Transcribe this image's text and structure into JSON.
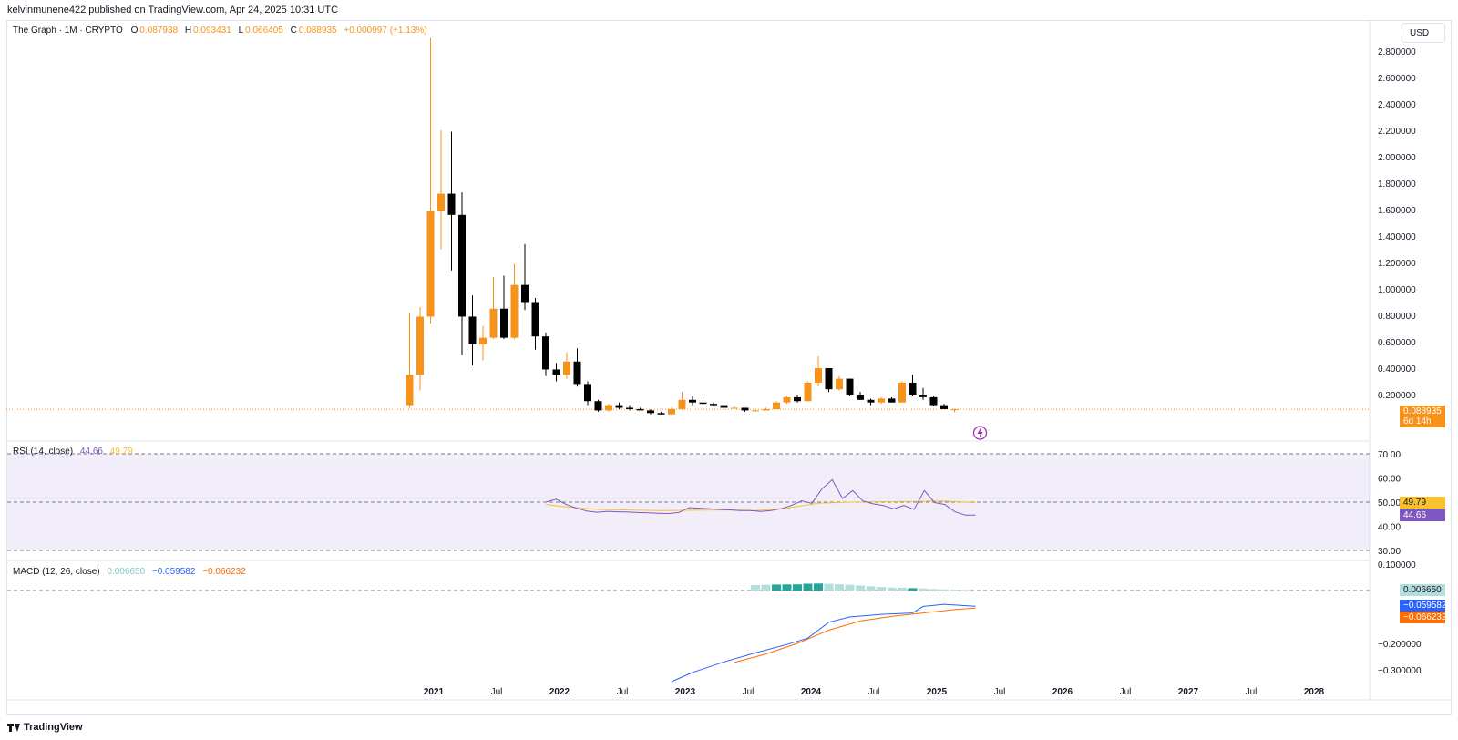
{
  "header": {
    "published": "kelvinmunene422 published on TradingView.com, Apr 24, 2025 10:31 UTC"
  },
  "legend": {
    "symbol": "The Graph · 1M · CRYPTO",
    "o_label": "O",
    "o": "0.087938",
    "h_label": "H",
    "h": "0.093431",
    "l_label": "L",
    "l": "0.066405",
    "c_label": "C",
    "c": "0.088935",
    "change": "+0.000997 (+1.13%)"
  },
  "currency": "USD",
  "price_tag": {
    "value": "0.088935",
    "countdown": "6d 14h"
  },
  "rsi": {
    "label": "RSI (14, close)",
    "value": "44.66",
    "ma_value": "49.79",
    "tag_ma": "49.79",
    "tag_rsi": "44.66",
    "ticks": [
      "70.00",
      "60.00",
      "50.00",
      "40.00",
      "30.00"
    ],
    "tick_values": [
      70,
      60,
      50,
      40,
      30
    ]
  },
  "macd": {
    "label": "MACD (12, 26, close)",
    "hist_value": "0.006650",
    "macd_value": "−0.059582",
    "signal_value": "−0.066232",
    "tag_hist": "0.006650",
    "tag_macd": "−0.059582",
    "tag_signal": "−0.066232",
    "ticks": [
      "0.100000",
      "−0.200000",
      "−0.300000"
    ],
    "tick_values": [
      0.1,
      -0.2,
      -0.3
    ]
  },
  "price_axis": {
    "ticks": [
      "2.800000",
      "2.600000",
      "2.400000",
      "2.200000",
      "2.000000",
      "1.800000",
      "1.600000",
      "1.400000",
      "1.200000",
      "1.000000",
      "0.800000",
      "0.600000",
      "0.400000",
      "0.200000"
    ],
    "tick_values": [
      2.8,
      2.6,
      2.4,
      2.2,
      2.0,
      1.8,
      1.6,
      1.4,
      1.2,
      1.0,
      0.8,
      0.6,
      0.4,
      0.2
    ]
  },
  "time_axis": {
    "labels": [
      "2021",
      "Jul",
      "2022",
      "Jul",
      "2023",
      "Jul",
      "2024",
      "Jul",
      "2025",
      "Jul",
      "2026",
      "Jul",
      "2027",
      "Jul",
      "2028"
    ],
    "months": [
      "2021-01",
      "2021-07",
      "2022-01",
      "2022-07",
      "2023-01",
      "2023-07",
      "2024-01",
      "2024-07",
      "2025-01",
      "2025-07",
      "2026-01",
      "2026-07",
      "2027-01",
      "2027-07",
      "2028-01"
    ]
  },
  "footer": {
    "brand": "TradingView"
  },
  "colors": {
    "up": "#f7931a",
    "down": "#000000",
    "rsi": "#7e57c2",
    "rsi_ma": "#fbc02d",
    "macd": "#2962ff",
    "signal": "#ff6d00",
    "hist_dark": "#26a69a",
    "hist_light": "#b2dfdb",
    "rsi_band": "#7e57c2"
  },
  "chart_data": [
    {
      "type": "candlestick",
      "title": "The Graph · 1M · CRYPTO",
      "x_unit": "month",
      "ylim": [
        0,
        2.9
      ],
      "candles": [
        [
          "2020-12",
          0.12,
          0.82,
          0.1,
          0.35
        ],
        [
          "2021-01",
          0.35,
          0.86,
          0.23,
          0.79
        ],
        [
          "2021-02",
          0.79,
          2.9,
          0.74,
          1.59
        ],
        [
          "2021-03",
          1.59,
          2.2,
          1.3,
          1.72
        ],
        [
          "2021-04",
          1.72,
          2.19,
          1.14,
          1.56
        ],
        [
          "2021-05",
          1.56,
          1.73,
          0.5,
          0.79
        ],
        [
          "2021-06",
          0.79,
          0.95,
          0.42,
          0.58
        ],
        [
          "2021-07",
          0.58,
          0.72,
          0.46,
          0.63
        ],
        [
          "2021-08",
          0.63,
          1.09,
          0.62,
          0.85
        ],
        [
          "2021-09",
          0.85,
          1.1,
          0.62,
          0.63
        ],
        [
          "2021-10",
          0.63,
          1.19,
          0.62,
          1.03
        ],
        [
          "2021-11",
          1.03,
          1.34,
          0.84,
          0.9
        ],
        [
          "2021-12",
          0.9,
          0.93,
          0.54,
          0.64
        ],
        [
          "2022-01",
          0.64,
          0.67,
          0.34,
          0.39
        ],
        [
          "2022-02",
          0.39,
          0.44,
          0.3,
          0.35
        ],
        [
          "2022-03",
          0.35,
          0.52,
          0.32,
          0.45
        ],
        [
          "2022-04",
          0.45,
          0.55,
          0.26,
          0.28
        ],
        [
          "2022-05",
          0.28,
          0.3,
          0.12,
          0.15
        ],
        [
          "2022-06",
          0.15,
          0.16,
          0.07,
          0.08
        ],
        [
          "2022-07",
          0.08,
          0.13,
          0.07,
          0.12
        ],
        [
          "2022-08",
          0.12,
          0.14,
          0.09,
          0.1
        ],
        [
          "2022-09",
          0.1,
          0.12,
          0.08,
          0.09
        ],
        [
          "2022-10",
          0.09,
          0.1,
          0.08,
          0.08
        ],
        [
          "2022-11",
          0.08,
          0.09,
          0.05,
          0.06
        ],
        [
          "2022-12",
          0.06,
          0.07,
          0.05,
          0.05
        ],
        [
          "2023-01",
          0.05,
          0.1,
          0.05,
          0.09
        ],
        [
          "2023-02",
          0.09,
          0.22,
          0.08,
          0.16
        ],
        [
          "2023-03",
          0.16,
          0.19,
          0.12,
          0.14
        ],
        [
          "2023-04",
          0.14,
          0.16,
          0.12,
          0.13
        ],
        [
          "2023-05",
          0.13,
          0.14,
          0.11,
          0.12
        ],
        [
          "2023-06",
          0.12,
          0.13,
          0.08,
          0.1
        ],
        [
          "2023-07",
          0.1,
          0.11,
          0.09,
          0.1
        ],
        [
          "2023-08",
          0.1,
          0.1,
          0.07,
          0.08
        ],
        [
          "2023-09",
          0.08,
          0.09,
          0.07,
          0.08
        ],
        [
          "2023-10",
          0.08,
          0.1,
          0.08,
          0.09
        ],
        [
          "2023-11",
          0.09,
          0.15,
          0.09,
          0.14
        ],
        [
          "2023-12",
          0.14,
          0.19,
          0.13,
          0.18
        ],
        [
          "2024-01",
          0.18,
          0.2,
          0.14,
          0.15
        ],
        [
          "2024-02",
          0.15,
          0.3,
          0.15,
          0.29
        ],
        [
          "2024-03",
          0.29,
          0.49,
          0.26,
          0.4
        ],
        [
          "2024-04",
          0.4,
          0.4,
          0.22,
          0.24
        ],
        [
          "2024-05",
          0.24,
          0.34,
          0.23,
          0.32
        ],
        [
          "2024-06",
          0.32,
          0.32,
          0.19,
          0.2
        ],
        [
          "2024-07",
          0.2,
          0.22,
          0.16,
          0.16
        ],
        [
          "2024-08",
          0.16,
          0.17,
          0.12,
          0.14
        ],
        [
          "2024-09",
          0.14,
          0.18,
          0.13,
          0.17
        ],
        [
          "2024-10",
          0.17,
          0.18,
          0.14,
          0.14
        ],
        [
          "2024-11",
          0.14,
          0.3,
          0.14,
          0.29
        ],
        [
          "2024-12",
          0.29,
          0.35,
          0.19,
          0.2
        ],
        [
          "2025-01",
          0.2,
          0.25,
          0.16,
          0.18
        ],
        [
          "2025-02",
          0.18,
          0.19,
          0.11,
          0.12
        ],
        [
          "2025-03",
          0.12,
          0.13,
          0.09,
          0.09
        ],
        [
          "2025-04",
          0.088,
          0.093,
          0.066,
          0.089
        ]
      ]
    },
    {
      "type": "line",
      "title": "RSI (14, close)",
      "ylim": [
        30,
        70
      ],
      "series": [
        {
          "name": "RSI",
          "points": [
            [
              "2022-01",
              50.0
            ],
            [
              "2022-02",
              51.2
            ],
            [
              "2022-03",
              49.0
            ],
            [
              "2022-04",
              47.5
            ],
            [
              "2022-05",
              46.3
            ],
            [
              "2022-06",
              45.8
            ],
            [
              "2022-07",
              46.2
            ],
            [
              "2022-08",
              46.0
            ],
            [
              "2022-09",
              45.9
            ],
            [
              "2022-10",
              45.7
            ],
            [
              "2022-11",
              45.6
            ],
            [
              "2022-12",
              45.4
            ],
            [
              "2022-12",
              45.3
            ],
            [
              "2023-01",
              45.7
            ],
            [
              "2023-02",
              47.7
            ],
            [
              "2023-03",
              47.5
            ],
            [
              "2023-04",
              47.3
            ],
            [
              "2023-05",
              47.0
            ],
            [
              "2023-06",
              46.8
            ],
            [
              "2023-07",
              46.5
            ],
            [
              "2023-08",
              46.5
            ],
            [
              "2023-09",
              46.1
            ],
            [
              "2023-10",
              46.5
            ],
            [
              "2023-11",
              47.3
            ],
            [
              "2023-12",
              48.6
            ],
            [
              "2024-01",
              50.5
            ],
            [
              "2024-02",
              49.5
            ],
            [
              "2024-03",
              55.5
            ],
            [
              "2024-04",
              59.3
            ],
            [
              "2024-05",
              51.5
            ],
            [
              "2024-06",
              54.8
            ],
            [
              "2024-07",
              50.5
            ],
            [
              "2024-08",
              49.3
            ],
            [
              "2024-09",
              48.6
            ],
            [
              "2024-10",
              47.2
            ],
            [
              "2024-11",
              48.6
            ],
            [
              "2024-12",
              47.0
            ],
            [
              "2025-01",
              54.8
            ],
            [
              "2025-02",
              49.8
            ],
            [
              "2025-03",
              49.0
            ],
            [
              "2025-04",
              46.0
            ],
            [
              "2025-05",
              44.6
            ],
            [
              "2025-06",
              44.66
            ]
          ]
        },
        {
          "name": "RSI-based MA",
          "points": [
            [
              "2022-01",
              49.0
            ],
            [
              "2022-03",
              48.0
            ],
            [
              "2022-06",
              47.0
            ],
            [
              "2022-12",
              46.5
            ],
            [
              "2023-06",
              46.8
            ],
            [
              "2023-09",
              46.5
            ],
            [
              "2023-12",
              47.5
            ],
            [
              "2024-03",
              49.5
            ],
            [
              "2024-06",
              50.0
            ],
            [
              "2024-09",
              50.2
            ],
            [
              "2024-12",
              50.3
            ],
            [
              "2025-03",
              50.5
            ],
            [
              "2025-06",
              49.79
            ]
          ]
        }
      ]
    },
    {
      "type": "line",
      "title": "MACD (12, 26, close)",
      "ylim": [
        -0.35,
        0.12
      ],
      "series": [
        {
          "name": "MACD",
          "points": [
            [
              "2023-01",
              -0.345
            ],
            [
              "2023-03",
              -0.31
            ],
            [
              "2023-06",
              -0.27
            ],
            [
              "2023-09",
              -0.236
            ],
            [
              "2023-12",
              -0.204
            ],
            [
              "2024-02",
              -0.18
            ],
            [
              "2024-04",
              -0.12
            ],
            [
              "2024-06",
              -0.1
            ],
            [
              "2024-09",
              -0.09
            ],
            [
              "2024-12",
              -0.085
            ],
            [
              "2025-01",
              -0.06
            ],
            [
              "2025-03",
              -0.052
            ],
            [
              "2025-06",
              -0.059582
            ]
          ]
        },
        {
          "name": "Signal",
          "points": [
            [
              "2023-07",
              -0.272
            ],
            [
              "2023-10",
              -0.24
            ],
            [
              "2024-01",
              -0.2
            ],
            [
              "2024-04",
              -0.15
            ],
            [
              "2024-07",
              -0.115
            ],
            [
              "2024-10",
              -0.098
            ],
            [
              "2025-01",
              -0.085
            ],
            [
              "2025-04",
              -0.072
            ],
            [
              "2025-06",
              -0.066232
            ]
          ]
        }
      ],
      "histogram": [
        [
          "2023-09",
          0.06
        ],
        [
          "2023-10",
          0.062
        ],
        [
          "2023-11",
          0.065
        ],
        [
          "2023-12",
          0.066
        ],
        [
          "2024-01",
          0.067
        ],
        [
          "2024-02",
          0.074
        ],
        [
          "2024-03",
          0.076
        ],
        [
          "2024-04",
          0.073
        ],
        [
          "2024-05",
          0.068
        ],
        [
          "2024-06",
          0.062
        ],
        [
          "2024-07",
          0.055
        ],
        [
          "2024-08",
          0.046
        ],
        [
          "2024-09",
          0.038
        ],
        [
          "2024-10",
          0.032
        ],
        [
          "2024-11",
          0.03
        ],
        [
          "2024-12",
          0.026
        ],
        [
          "2025-01",
          0.022
        ],
        [
          "2025-02",
          0.017
        ],
        [
          "2025-03",
          0.012
        ],
        [
          "2025-04",
          0.0085
        ],
        [
          "2025-05",
          0.00665
        ]
      ],
      "histogram_dark": [
        "2023-11",
        "2023-12",
        "2024-01",
        "2024-02",
        "2024-03",
        "2024-12"
      ]
    }
  ]
}
